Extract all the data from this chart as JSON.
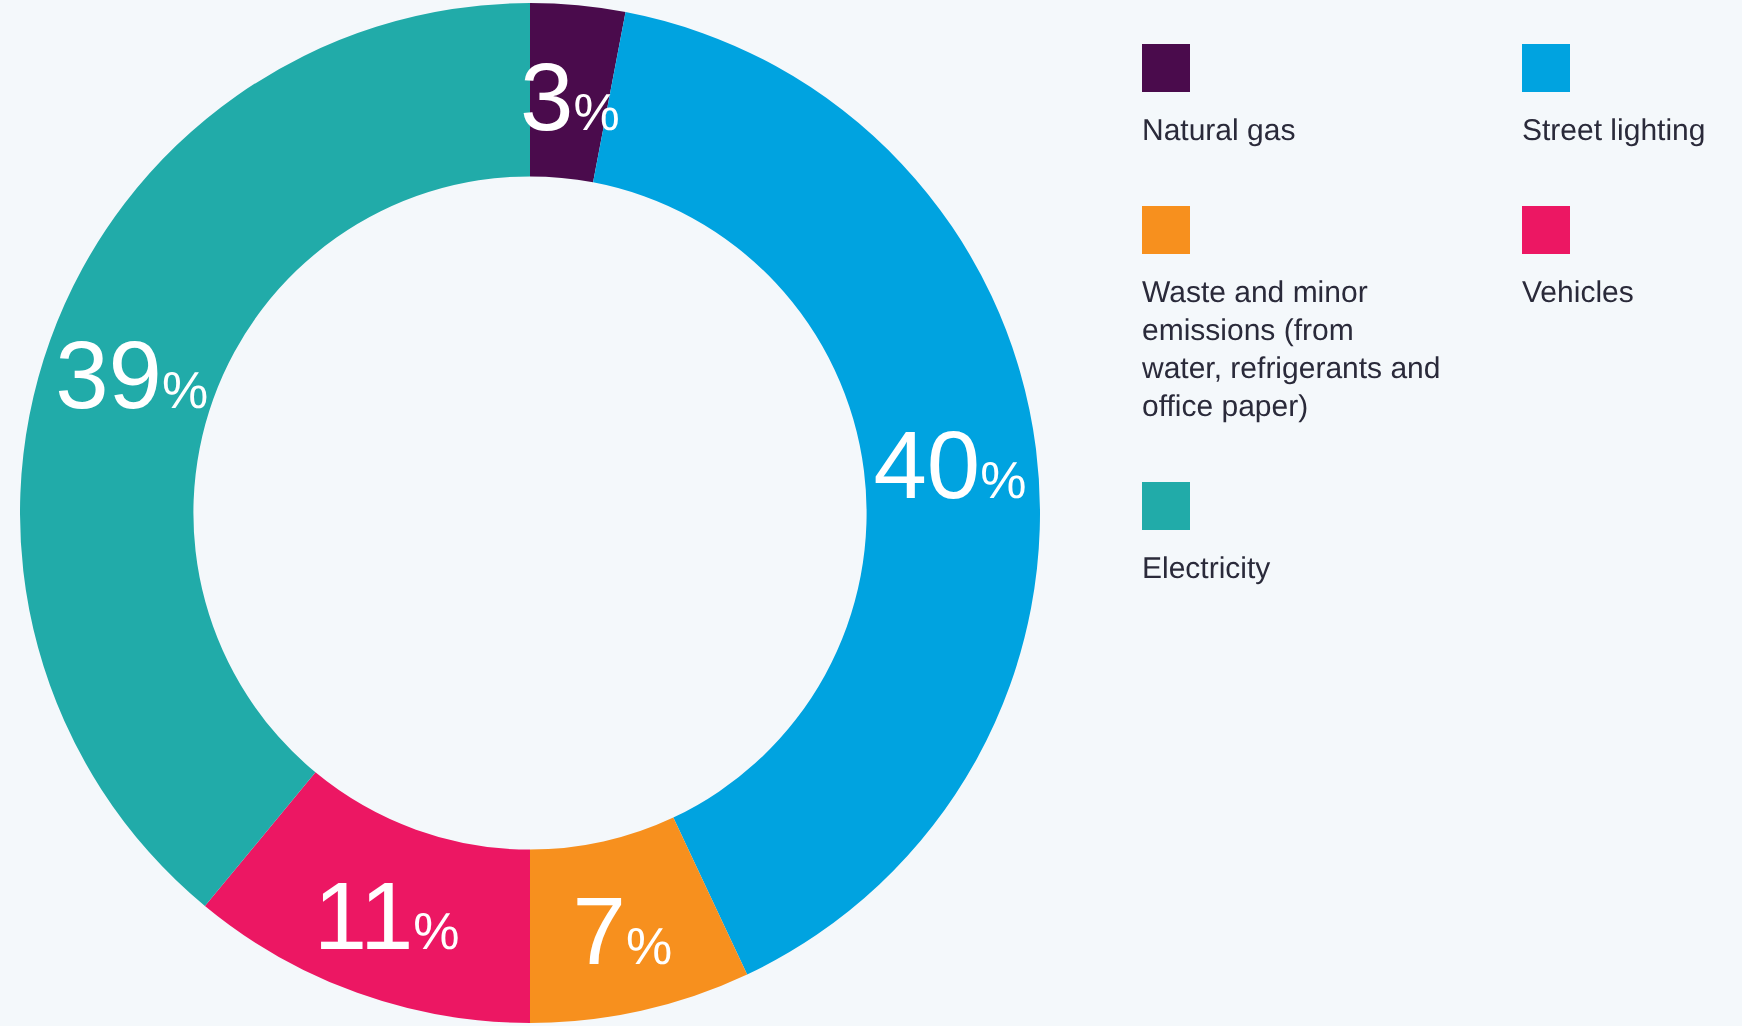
{
  "chart_data": {
    "type": "donut",
    "categories": [
      "Natural gas",
      "Street lighting",
      "Waste and minor emissions (from water, refrigerants and office paper)",
      "Vehicles",
      "Electricity"
    ],
    "values": [
      3,
      40,
      7,
      11,
      39
    ],
    "colors": [
      "#4a0b4c",
      "#00a3e0",
      "#f7901e",
      "#ec1763",
      "#21aba9"
    ],
    "value_labels": [
      "3%",
      "40%",
      "7%",
      "11%",
      "39%"
    ],
    "legend": "right"
  }
}
